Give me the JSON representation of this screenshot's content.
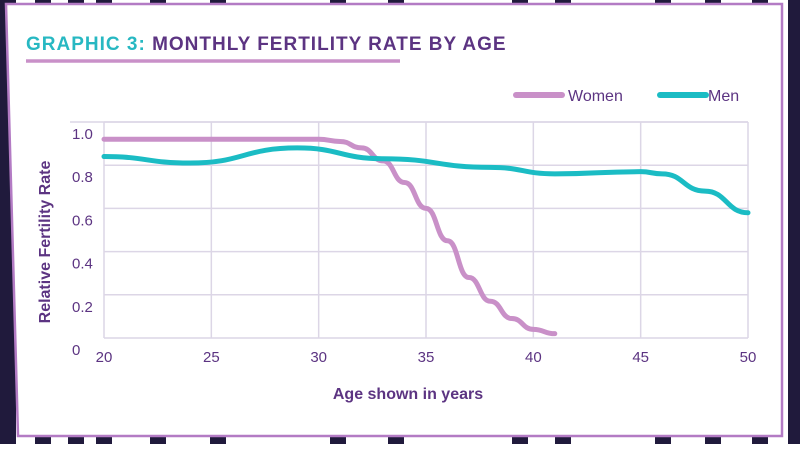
{
  "chart_data": {
    "type": "line",
    "title": "GRAPHIC 3: MONTHLY FERTILITY RATE BY AGE",
    "title_prefix": "GRAPHIC 3: ",
    "title_main": "MONTHLY FERTILITY RATE BY AGE",
    "xlabel": "Age shown in years",
    "ylabel": "Relative Fertility Rate",
    "xlim": [
      20,
      50
    ],
    "ylim": [
      0,
      1.0
    ],
    "x_ticks": [
      "20",
      "25",
      "30",
      "35",
      "40",
      "45",
      "50"
    ],
    "y_ticks": [
      "1.0",
      "0.8",
      "0.6",
      "0.4",
      "0.2",
      "0"
    ],
    "grid": true,
    "legend_position": "top-right",
    "series": [
      {
        "name": "Women",
        "color": "#c990c8",
        "x": [
          20,
          25,
          30,
          31,
          32,
          33,
          34,
          35,
          36,
          37,
          38,
          39,
          40,
          41
        ],
        "y": [
          0.92,
          0.92,
          0.92,
          0.91,
          0.88,
          0.82,
          0.72,
          0.6,
          0.45,
          0.28,
          0.17,
          0.09,
          0.04,
          0.02
        ]
      },
      {
        "name": "Men",
        "color": "#1bbcc4",
        "x": [
          20,
          24,
          29,
          33,
          38,
          41,
          45,
          46,
          48,
          50
        ],
        "y": [
          0.84,
          0.81,
          0.88,
          0.83,
          0.79,
          0.76,
          0.77,
          0.76,
          0.68,
          0.58
        ]
      }
    ]
  },
  "colors": {
    "title_accent": "#27b8c2",
    "title_main": "#5c3482",
    "frame_border": "#b37bc4",
    "axis_text": "#5c3482",
    "grid": "#dcd6e6",
    "stripe": "#201a3c"
  }
}
